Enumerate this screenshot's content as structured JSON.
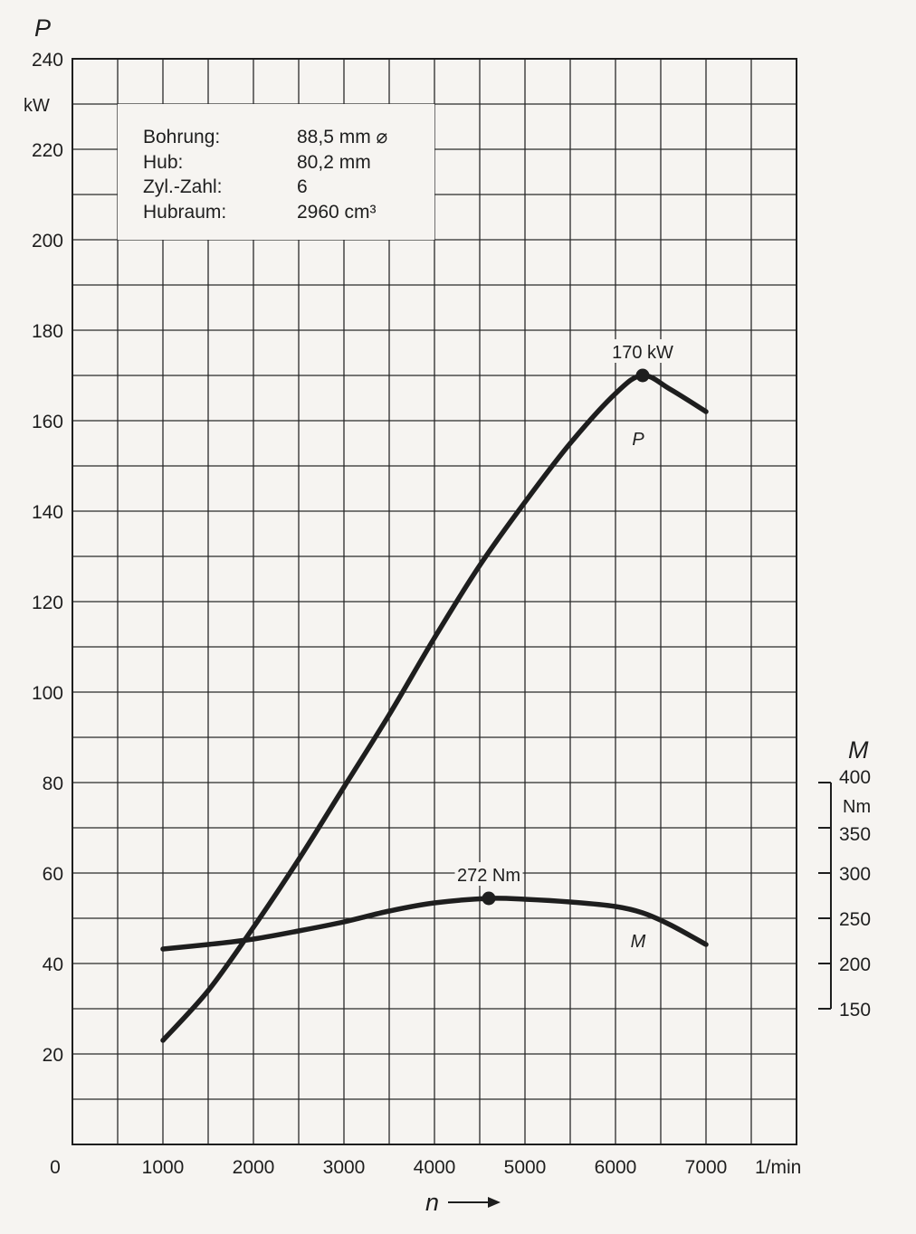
{
  "chart_data": {
    "type": "line",
    "x_axis": {
      "label": "n",
      "unit": "1/min",
      "ticks": [
        {
          "value": 0,
          "label": "0"
        },
        {
          "value": 1000,
          "label": "1000"
        },
        {
          "value": 2000,
          "label": "2000"
        },
        {
          "value": 3000,
          "label": "3000"
        },
        {
          "value": 4000,
          "label": "4000"
        },
        {
          "value": 5000,
          "label": "5000"
        },
        {
          "value": 6000,
          "label": "6000"
        },
        {
          "value": 7000,
          "label": "7000"
        }
      ],
      "range": [
        0,
        8000
      ],
      "grid_step": 500
    },
    "y_axis": {
      "label": "P",
      "unit": "kW",
      "ticks": [
        {
          "value": 20,
          "label": "20"
        },
        {
          "value": 40,
          "label": "40"
        },
        {
          "value": 60,
          "label": "60"
        },
        {
          "value": 80,
          "label": "80"
        },
        {
          "value": 100,
          "label": "100"
        },
        {
          "value": 120,
          "label": "120"
        },
        {
          "value": 140,
          "label": "140"
        },
        {
          "value": 160,
          "label": "160"
        },
        {
          "value": 180,
          "label": "180"
        },
        {
          "value": 200,
          "label": "200"
        },
        {
          "value": 220,
          "label": "220"
        },
        {
          "value": 240,
          "label": "240"
        }
      ],
      "range": [
        0,
        240
      ],
      "grid_step": 10
    },
    "y2_axis": {
      "label": "M",
      "unit": "Nm",
      "ticks": [
        {
          "value": 150,
          "label": "150"
        },
        {
          "value": 200,
          "label": "200"
        },
        {
          "value": 250,
          "label": "250"
        },
        {
          "value": 300,
          "label": "300"
        },
        {
          "value": 350,
          "label": "350"
        },
        {
          "value": 400,
          "label": "400"
        }
      ],
      "range": [
        150,
        400
      ]
    },
    "grid": true,
    "series": [
      {
        "name": "P",
        "axis": "y",
        "points": [
          [
            1000,
            23
          ],
          [
            1500,
            34
          ],
          [
            2000,
            48
          ],
          [
            2500,
            63
          ],
          [
            3000,
            79
          ],
          [
            3500,
            95
          ],
          [
            4000,
            112
          ],
          [
            4500,
            128
          ],
          [
            5000,
            142
          ],
          [
            5500,
            155
          ],
          [
            6000,
            166
          ],
          [
            6300,
            170
          ],
          [
            6600,
            167
          ],
          [
            7000,
            162
          ]
        ]
      },
      {
        "name": "M",
        "axis": "y2",
        "points": [
          [
            1000,
            216
          ],
          [
            1500,
            221
          ],
          [
            2000,
            227
          ],
          [
            2500,
            236
          ],
          [
            3000,
            246
          ],
          [
            3500,
            258
          ],
          [
            4000,
            267
          ],
          [
            4600,
            272
          ],
          [
            5000,
            271
          ],
          [
            5500,
            268
          ],
          [
            6000,
            263
          ],
          [
            6300,
            256
          ],
          [
            6600,
            243
          ],
          [
            7000,
            221
          ]
        ]
      }
    ],
    "annotations": [
      {
        "text": "170 kW",
        "series": "P",
        "x": 6300,
        "y": 170
      },
      {
        "text": "272 Nm",
        "series": "M",
        "x": 4600,
        "y": 272
      }
    ],
    "series_labels": [
      {
        "text": "P",
        "series": "P",
        "x": 6250,
        "y": 155
      },
      {
        "text": "M",
        "series": "M",
        "x": 6250,
        "y": 44
      }
    ],
    "specs": [
      {
        "key": "Bohrung:",
        "value": "88,5 mm ⌀"
      },
      {
        "key": "Hub:",
        "value": "80,2 mm"
      },
      {
        "key": "Zyl.-Zahl:",
        "value": "6"
      },
      {
        "key": "Hubraum:",
        "value": "2960 cm³"
      }
    ]
  }
}
